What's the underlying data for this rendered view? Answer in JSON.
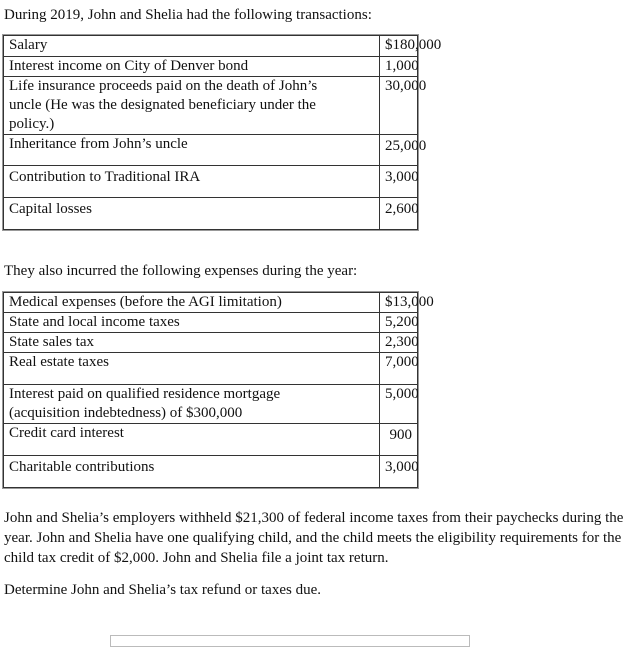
{
  "intro": "During 2019, John and Shelia had the following transactions:",
  "transactions": [
    {
      "label": "Salary",
      "value": "$180,000"
    },
    {
      "label": "Interest income on City of Denver bond",
      "value": "1,000"
    },
    {
      "label": "Life insurance proceeds paid on the death of John’s uncle (He was the designated beneficiary under the policy.)",
      "value": "30,000"
    },
    {
      "label": "Inheritance from John’s uncle",
      "value": "25,000"
    },
    {
      "label": "Contribution to Traditional IRA",
      "value": "3,000"
    },
    {
      "label": "Capital losses",
      "value": "2,600"
    }
  ],
  "expenses_intro": "They also incurred the following expenses during the year:",
  "expenses": [
    {
      "label": "Medical expenses (before the AGI limitation)",
      "value": "$13,000"
    },
    {
      "label": "State and local income taxes",
      "value": "5,200"
    },
    {
      "label": "State sales tax",
      "value": "2,300"
    },
    {
      "label": "Real estate taxes",
      "value": "7,000"
    },
    {
      "label": "Interest paid on qualified residence mortgage (acquisition indebtedness) of $300,000",
      "value": "5,000"
    },
    {
      "label": "Credit card interest",
      "value": "900"
    },
    {
      "label": "Charitable contributions",
      "value": "3,000"
    }
  ],
  "paragraph": "John and Shelia’s employers withheld $21,300 of federal income taxes from their paychecks during the year. John and Shelia have one qualifying child, and the child meets the eligibility requirements for the child tax credit of $2,000. John and Shelia file a joint tax return.",
  "question": "Determine John and Shelia’s tax refund or taxes due."
}
